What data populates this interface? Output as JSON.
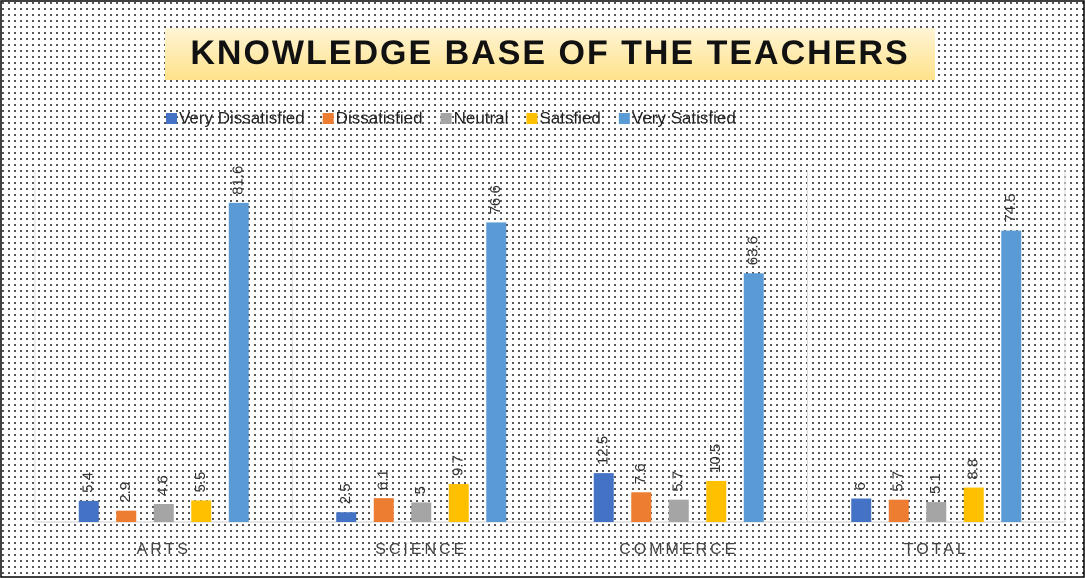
{
  "chart_data": {
    "type": "bar",
    "title": "KNOWLEDGE BASE OF THE TEACHERS",
    "categories": [
      "ARTS",
      "SCIENCE",
      "COMMERCE",
      "TOTAL"
    ],
    "series": [
      {
        "name": "Very Dissatisfied",
        "color": "#4472c4",
        "values": [
          5.4,
          2.5,
          12.5,
          6
        ]
      },
      {
        "name": "Dissatisfied",
        "color": "#ed7d31",
        "values": [
          2.9,
          6.1,
          7.6,
          5.7
        ]
      },
      {
        "name": "Neutral",
        "color": "#a5a5a5",
        "values": [
          4.6,
          5,
          5.7,
          5.1
        ]
      },
      {
        "name": "Satsfied",
        "color": "#ffc000",
        "values": [
          5.5,
          9.7,
          10.5,
          8.8
        ]
      },
      {
        "name": "Very Satisfied",
        "color": "#5b9bd5",
        "values": [
          81.6,
          76.6,
          63.6,
          74.5
        ]
      }
    ],
    "ylim": [
      0,
      90
    ],
    "legend": "top"
  }
}
